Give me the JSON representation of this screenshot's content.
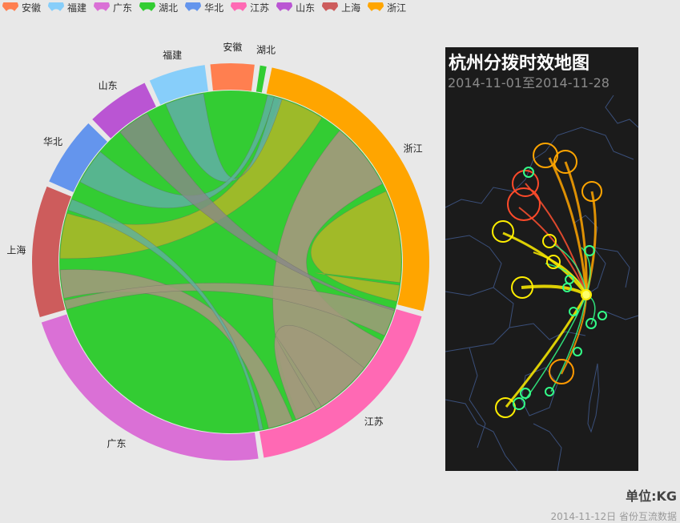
{
  "legend": [
    {
      "name": "安徽",
      "color": "#ff7f50"
    },
    {
      "name": "福建",
      "color": "#87cefa"
    },
    {
      "name": "广东",
      "color": "#da70d6"
    },
    {
      "name": "湖北",
      "color": "#32cd32"
    },
    {
      "name": "华北",
      "color": "#6495ed"
    },
    {
      "name": "江苏",
      "color": "#ff69b4"
    },
    {
      "name": "山东",
      "color": "#ba55d3"
    },
    {
      "name": "上海",
      "color": "#cd5c5c"
    },
    {
      "name": "浙江",
      "color": "#ffa500"
    }
  ],
  "chart_data": {
    "type": "chord",
    "categories": [
      "浙江",
      "江苏",
      "广东",
      "上海",
      "华北",
      "山东",
      "福建",
      "安徽",
      "湖北"
    ],
    "arc_share_percent": [
      24.5,
      17.1,
      21.3,
      10.2,
      5.4,
      4.9,
      4.4,
      3.4,
      0.5
    ],
    "colors": [
      "#ffa500",
      "#ff69b4",
      "#da70d6",
      "#cd5c5c",
      "#6495ed",
      "#ba55d3",
      "#87cefa",
      "#ff7f50",
      "#32cd32"
    ]
  },
  "map": {
    "title": "杭州分拨时效地图",
    "subtitle": "2014-11-01至2014-11-28"
  },
  "unit_label": "单位:KG",
  "footer_note": "2014-11-12日 省份互流数据"
}
